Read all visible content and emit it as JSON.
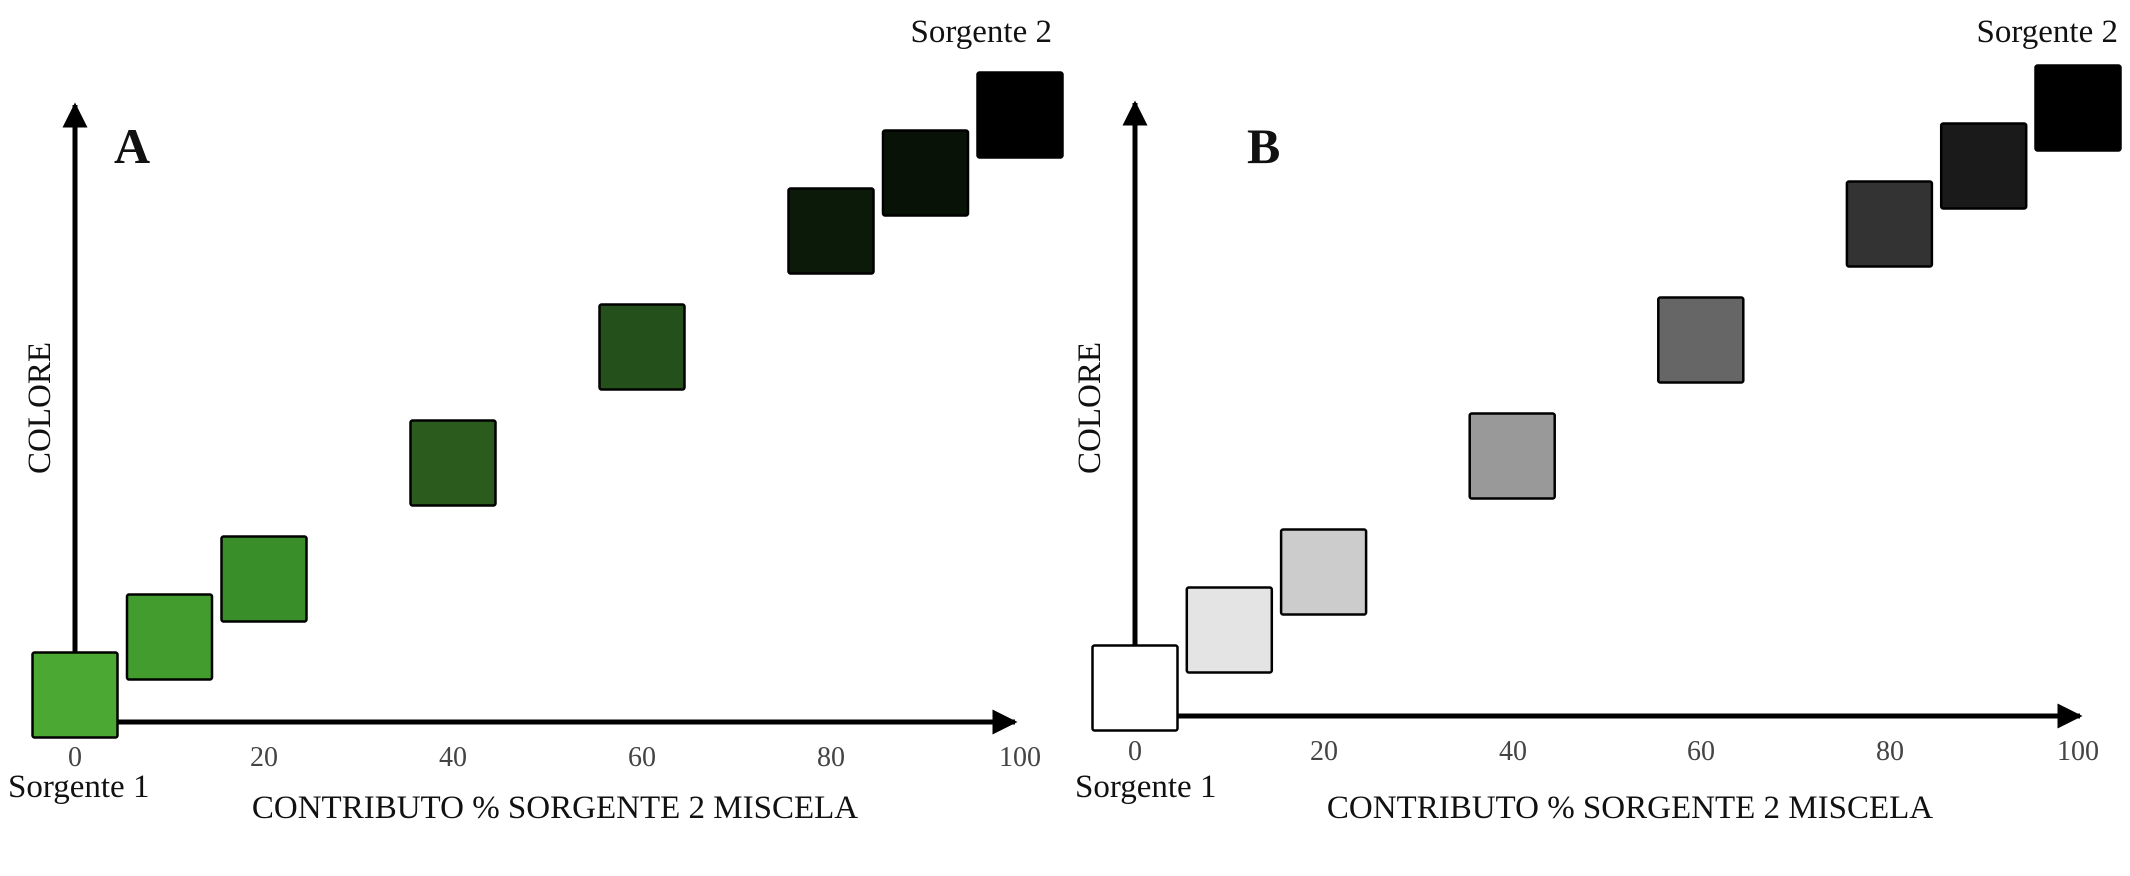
{
  "chart_data": [
    {
      "panel_label": "A",
      "type": "scatter",
      "xlabel": "CONTRIBUTO % SORGENTE 2 MISCELA",
      "ylabel": "COLORE",
      "x_ticks": [
        "0",
        "20",
        "40",
        "60",
        "80",
        "100"
      ],
      "xlim": [
        0,
        100
      ],
      "start_label": "Sorgente 1",
      "end_label": "Sorgente 2",
      "points": [
        {
          "x": 0,
          "color": "#4ba832"
        },
        {
          "x": 10,
          "color": "#429d2e"
        },
        {
          "x": 20,
          "color": "#3a8e2a"
        },
        {
          "x": 40,
          "color": "#2b5c1e"
        },
        {
          "x": 60,
          "color": "#24501b"
        },
        {
          "x": 80,
          "color": "#0c1a0a"
        },
        {
          "x": 90,
          "color": "#081207"
        },
        {
          "x": 100,
          "color": "#000000"
        }
      ]
    },
    {
      "panel_label": "B",
      "type": "scatter",
      "xlabel": "CONTRIBUTO % SORGENTE 2 MISCELA",
      "ylabel": "COLORE",
      "x_ticks": [
        "0",
        "20",
        "40",
        "60",
        "80",
        "100"
      ],
      "xlim": [
        0,
        100
      ],
      "start_label": "Sorgente 1",
      "end_label": "Sorgente 2",
      "points": [
        {
          "x": 0,
          "color": "#ffffff"
        },
        {
          "x": 10,
          "color": "#e4e4e4"
        },
        {
          "x": 20,
          "color": "#cccccc"
        },
        {
          "x": 40,
          "color": "#999999"
        },
        {
          "x": 60,
          "color": "#666666"
        },
        {
          "x": 80,
          "color": "#333333"
        },
        {
          "x": 90,
          "color": "#1a1a1a"
        },
        {
          "x": 100,
          "color": "#000000"
        }
      ]
    }
  ]
}
